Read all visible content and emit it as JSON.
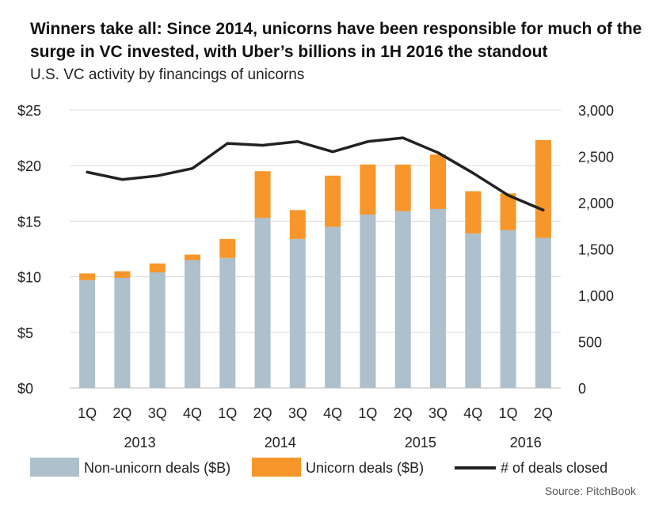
{
  "title": "Winners take all: Since 2014, unicorns have been responsible for much of the surge in VC invested, with Uber’s billions in 1H 2016 the standout",
  "subtitle": "U.S. VC activity by financings of unicorns",
  "source": "Source: PitchBook",
  "colors": {
    "non_unicorn": "#adc0cc",
    "unicorn": "#f7962a",
    "deals_line": "#222222",
    "grid": "#d9d9d9"
  },
  "chart_data": {
    "type": "bar",
    "categories": [
      "1Q",
      "2Q",
      "3Q",
      "4Q",
      "1Q",
      "2Q",
      "3Q",
      "4Q",
      "1Q",
      "2Q",
      "3Q",
      "4Q",
      "1Q",
      "2Q"
    ],
    "years": [
      {
        "label": "2013",
        "start": 0,
        "end": 3
      },
      {
        "label": "2014",
        "start": 4,
        "end": 7
      },
      {
        "label": "2015",
        "start": 8,
        "end": 11
      },
      {
        "label": "2016",
        "start": 12,
        "end": 13
      }
    ],
    "series": [
      {
        "name": "Non-unicorn deals ($B)",
        "kind": "bar",
        "axis": "left",
        "color": "#adc0cc",
        "values": [
          9.7,
          9.9,
          10.4,
          11.5,
          11.7,
          15.3,
          13.4,
          14.5,
          15.6,
          15.9,
          16.1,
          13.9,
          14.2,
          13.5
        ]
      },
      {
        "name": "Unicorn deals ($B)",
        "kind": "bar",
        "axis": "left",
        "color": "#f7962a",
        "values": [
          0.6,
          0.6,
          0.8,
          0.5,
          1.7,
          4.2,
          2.6,
          4.6,
          4.5,
          4.2,
          4.9,
          3.8,
          3.3,
          8.8
        ]
      },
      {
        "name": "# of deals closed",
        "kind": "line",
        "axis": "right",
        "color": "#222222",
        "values": [
          2330,
          2250,
          2290,
          2370,
          2640,
          2620,
          2660,
          2550,
          2660,
          2700,
          2540,
          2320,
          2080,
          1920
        ]
      }
    ],
    "y_left": {
      "min": 0,
      "max": 25,
      "ticks": [
        "$0",
        "$5",
        "$10",
        "$15",
        "$20",
        "$25"
      ],
      "tick_values": [
        0,
        5,
        10,
        15,
        20,
        25
      ]
    },
    "y_right": {
      "min": 0,
      "max": 3000,
      "ticks": [
        "0",
        "500",
        "1,000",
        "1,500",
        "2,000",
        "2,500",
        "3,000"
      ],
      "tick_values": [
        0,
        500,
        1000,
        1500,
        2000,
        2500,
        3000
      ]
    },
    "grid": true,
    "legend_position": "bottom"
  }
}
